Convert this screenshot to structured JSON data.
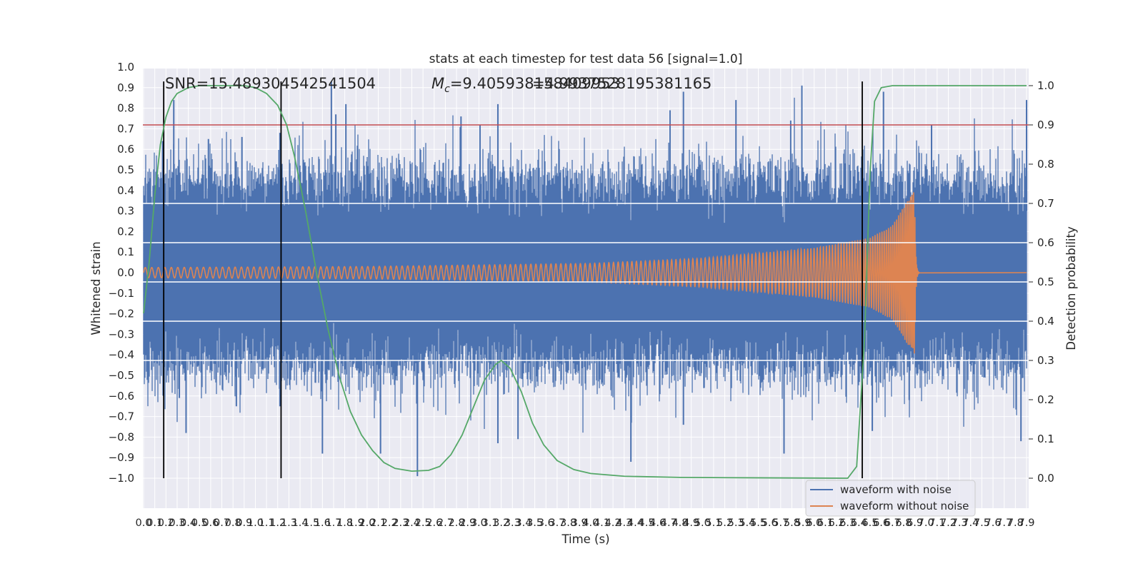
{
  "chart_data": {
    "type": "line",
    "title": "stats at each timestep for test data 56 [signal=1.0]",
    "xlabel": "Time (s)",
    "ylabel_left": "Whitened strain",
    "ylabel_right": "Detection probability",
    "xlim": [
      0.0,
      7.9
    ],
    "ylim_left": [
      -1.09,
      1.04
    ],
    "ylim_right": [
      -0.048,
      1.035
    ],
    "grid": true,
    "legend_placement": "lower-right",
    "annotations": {
      "snr": "SNR=15.489304542541504",
      "mc_symbol": "M",
      "mc_subscript": "c",
      "mc_value_1": "=9.405938158409953",
      "mc_value_2": "=4.9937528195381165"
    },
    "x_ticks": [
      0.0,
      0.1,
      0.2,
      0.3,
      0.4,
      0.5,
      0.6,
      0.7,
      0.8,
      0.9,
      1.0,
      1.1,
      1.2,
      1.3,
      1.4,
      1.5,
      1.6,
      1.7,
      1.8,
      1.9,
      2.0,
      2.1,
      2.2,
      2.3,
      2.4,
      2.5,
      2.6,
      2.7,
      2.8,
      2.9,
      3.0,
      3.1,
      3.2,
      3.3,
      3.4,
      3.5,
      3.6,
      3.7,
      3.8,
      3.9,
      4.0,
      4.1,
      4.2,
      4.3,
      4.4,
      4.5,
      4.6,
      4.7,
      4.8,
      4.9,
      5.0,
      5.1,
      5.2,
      5.3,
      5.4,
      5.5,
      5.6,
      5.7,
      5.8,
      5.9,
      6.0,
      6.1,
      6.2,
      6.3,
      6.4,
      6.5,
      6.6,
      6.7,
      6.8,
      6.9,
      7.0,
      7.1,
      7.2,
      7.3,
      7.4,
      7.5,
      7.6,
      7.7,
      7.8,
      7.9
    ],
    "y_ticks_left": [
      -1.0,
      -0.9,
      -0.8,
      -0.7,
      -0.6,
      -0.5,
      -0.4,
      -0.3,
      -0.2,
      -0.1,
      0.0,
      0.1,
      0.2,
      0.3,
      0.4,
      0.5,
      0.6,
      0.7,
      0.8,
      0.9,
      1.0
    ],
    "y_ticks_right": [
      0.0,
      0.1,
      0.2,
      0.3,
      0.4,
      0.5,
      0.6,
      0.7,
      0.8,
      0.9,
      1.0
    ],
    "horizontal_lines_right_axis": [
      {
        "value": 0.9,
        "color": "#c44e52"
      },
      {
        "value": 0.7,
        "color": "#ffffff"
      },
      {
        "value": 0.6,
        "color": "#ffffff"
      },
      {
        "value": 0.5,
        "color": "#ffffff"
      },
      {
        "value": 0.4,
        "color": "#ffffff"
      },
      {
        "value": 0.3,
        "color": "#ffffff"
      }
    ],
    "vertical_lines_x": [
      0.18,
      1.23,
      6.43
    ],
    "series": [
      {
        "name": "waveform with noise",
        "axis": "left",
        "color": "#4c72b0",
        "kind": "noise",
        "typical_envelope": [
          -0.45,
          0.45
        ],
        "peaks": [
          {
            "x": 0.06,
            "y": 0.46
          },
          {
            "x": 0.17,
            "y": 0.64
          },
          {
            "x": 0.27,
            "y": 0.84
          },
          {
            "x": 0.58,
            "y": 0.65
          },
          {
            "x": 0.88,
            "y": 0.66
          },
          {
            "x": 1.22,
            "y": 0.68
          },
          {
            "x": 1.68,
            "y": 0.93
          },
          {
            "x": 1.72,
            "y": 0.77
          },
          {
            "x": 1.81,
            "y": 0.82
          },
          {
            "x": 2.84,
            "y": 0.76
          },
          {
            "x": 3.01,
            "y": 0.72
          },
          {
            "x": 3.17,
            "y": 0.82
          },
          {
            "x": 4.71,
            "y": 0.79
          },
          {
            "x": 4.83,
            "y": 0.88
          },
          {
            "x": 5.3,
            "y": 0.84
          },
          {
            "x": 5.79,
            "y": 0.74
          },
          {
            "x": 5.89,
            "y": 0.91
          },
          {
            "x": 6.62,
            "y": 0.88
          },
          {
            "x": 7.05,
            "y": 0.72
          },
          {
            "x": 7.9,
            "y": 0.84
          }
        ],
        "troughs": [
          {
            "x": 0.32,
            "y": -0.61
          },
          {
            "x": 0.38,
            "y": -0.78
          },
          {
            "x": 0.83,
            "y": -0.65
          },
          {
            "x": 1.22,
            "y": -0.65
          },
          {
            "x": 1.6,
            "y": -0.88
          },
          {
            "x": 2.12,
            "y": -0.88
          },
          {
            "x": 2.45,
            "y": -0.99
          },
          {
            "x": 3.17,
            "y": -0.83
          },
          {
            "x": 3.35,
            "y": -0.81
          },
          {
            "x": 4.36,
            "y": -0.92
          },
          {
            "x": 4.83,
            "y": -0.74
          },
          {
            "x": 5.73,
            "y": -0.88
          },
          {
            "x": 6.52,
            "y": -0.77
          },
          {
            "x": 6.85,
            "y": -0.62
          },
          {
            "x": 7.85,
            "y": -0.82
          }
        ]
      },
      {
        "name": "waveform without noise",
        "axis": "left",
        "color": "#dd8452",
        "kind": "chirp",
        "amplitude_at": [
          {
            "x": 0.0,
            "y": 0.025
          },
          {
            "x": 2.0,
            "y": 0.03
          },
          {
            "x": 4.0,
            "y": 0.045
          },
          {
            "x": 5.0,
            "y": 0.07
          },
          {
            "x": 6.0,
            "y": 0.12
          },
          {
            "x": 6.5,
            "y": 0.17
          },
          {
            "x": 6.7,
            "y": 0.23
          },
          {
            "x": 6.8,
            "y": 0.32
          },
          {
            "x": 6.9,
            "y": 0.4
          }
        ],
        "merger_x": 6.9
      },
      {
        "name": "",
        "axis": "right",
        "color": "#55a868",
        "kind": "probability",
        "points": [
          {
            "x": 0.0,
            "y": 0.42
          },
          {
            "x": 0.05,
            "y": 0.55
          },
          {
            "x": 0.1,
            "y": 0.72
          },
          {
            "x": 0.15,
            "y": 0.85
          },
          {
            "x": 0.2,
            "y": 0.92
          },
          {
            "x": 0.25,
            "y": 0.96
          },
          {
            "x": 0.3,
            "y": 0.98
          },
          {
            "x": 0.4,
            "y": 0.995
          },
          {
            "x": 0.5,
            "y": 1.0
          },
          {
            "x": 0.9,
            "y": 1.0
          },
          {
            "x": 1.0,
            "y": 0.995
          },
          {
            "x": 1.1,
            "y": 0.98
          },
          {
            "x": 1.2,
            "y": 0.95
          },
          {
            "x": 1.28,
            "y": 0.9
          },
          {
            "x": 1.35,
            "y": 0.82
          },
          {
            "x": 1.45,
            "y": 0.68
          },
          {
            "x": 1.55,
            "y": 0.52
          },
          {
            "x": 1.65,
            "y": 0.38
          },
          {
            "x": 1.75,
            "y": 0.26
          },
          {
            "x": 1.85,
            "y": 0.17
          },
          {
            "x": 1.95,
            "y": 0.11
          },
          {
            "x": 2.05,
            "y": 0.07
          },
          {
            "x": 2.15,
            "y": 0.04
          },
          {
            "x": 2.25,
            "y": 0.025
          },
          {
            "x": 2.4,
            "y": 0.018
          },
          {
            "x": 2.55,
            "y": 0.02
          },
          {
            "x": 2.65,
            "y": 0.03
          },
          {
            "x": 2.75,
            "y": 0.06
          },
          {
            "x": 2.85,
            "y": 0.11
          },
          {
            "x": 2.95,
            "y": 0.18
          },
          {
            "x": 3.05,
            "y": 0.25
          },
          {
            "x": 3.15,
            "y": 0.29
          },
          {
            "x": 3.2,
            "y": 0.3
          },
          {
            "x": 3.28,
            "y": 0.28
          },
          {
            "x": 3.38,
            "y": 0.22
          },
          {
            "x": 3.48,
            "y": 0.14
          },
          {
            "x": 3.58,
            "y": 0.085
          },
          {
            "x": 3.7,
            "y": 0.045
          },
          {
            "x": 3.85,
            "y": 0.022
          },
          {
            "x": 4.0,
            "y": 0.012
          },
          {
            "x": 4.3,
            "y": 0.005
          },
          {
            "x": 4.8,
            "y": 0.002
          },
          {
            "x": 5.5,
            "y": 0.001
          },
          {
            "x": 6.3,
            "y": 0.0
          },
          {
            "x": 6.38,
            "y": 0.03
          },
          {
            "x": 6.45,
            "y": 0.35
          },
          {
            "x": 6.5,
            "y": 0.78
          },
          {
            "x": 6.54,
            "y": 0.96
          },
          {
            "x": 6.6,
            "y": 0.995
          },
          {
            "x": 6.7,
            "y": 1.0
          },
          {
            "x": 7.9,
            "y": 1.0
          }
        ]
      }
    ]
  }
}
